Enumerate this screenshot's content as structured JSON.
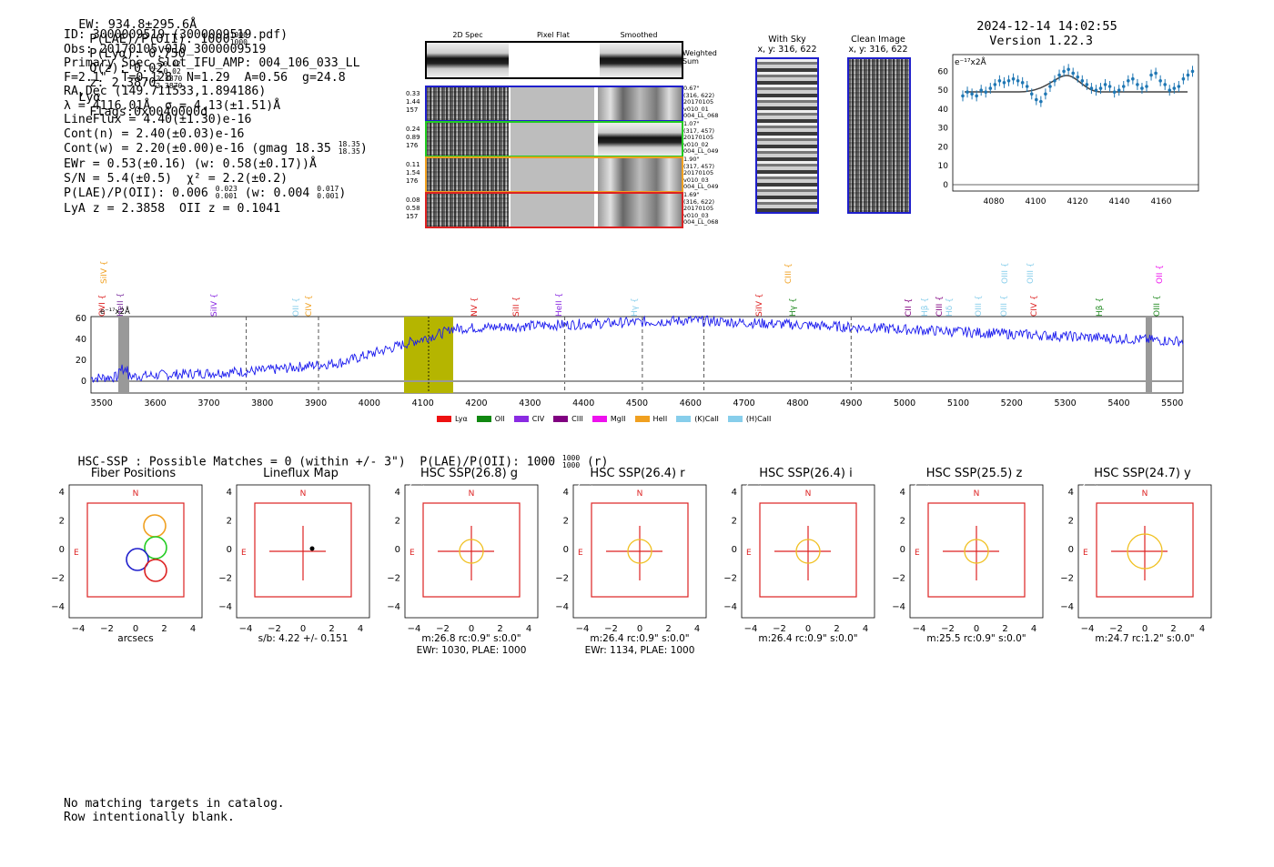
{
  "header": {
    "ew": "EW: 934.8±295.6Å",
    "plae_poii_prefix": "P(LAE)/P(OII): 1000",
    "plae_poii_hi": "1000",
    "plae_poii_lo": "1000",
    "plya": "P(Lyα): 0.750",
    "qz_prefix": "Q(z): 0.02",
    "qz_hi": "0.02",
    "qz_lo": "0.02",
    "z_prefix": "z: 2.3870",
    "z_hi": "2.3870",
    "z_lo": "2.3870",
    "z_line": "Lyα",
    "flags": "Flags:0x0040000d",
    "timestamp": "2024-12-14 14:02:55",
    "version": "Version 1.22.3"
  },
  "info": {
    "id": "ID: 3000009519 (3000009519.pdf)",
    "obs": "Obs: 20170105v010_3000009519",
    "primary": "Primary Spec_Slot_IFU_AMP: 004_106_033_LL",
    "fit": "F=2.1\"  T=0.128  N=1.29  A=0.56  g=24.8",
    "radec": "RA,Dec (149.711533,1.894186)",
    "lambda": "λ = 4116.01Å  σ = 4.13(±1.51)Å",
    "lineflux": "LineFlux = 4.40(±1.30)e-16",
    "contn": "Cont(n) = 2.40(±0.03)e-16",
    "contw_prefix": "Cont(w) = 2.20(±0.00)e-16 (gmag 18.35",
    "contw_hi": "18.35",
    "contw_lo": "18.35",
    "contw_suffix": ")",
    "ewr": "EWr = 0.53(±0.16) (w: 0.58(±0.17))Å",
    "sn": "S/N = 5.4(±0.5)  χ² = 2.2(±0.2)",
    "plae_a": "P(LAE)/P(OII): 0.006",
    "plae_a_hi": "0.023",
    "plae_a_lo": "0.001",
    "plae_b": "(w: 0.004",
    "plae_b_hi": "0.017",
    "plae_b_lo": "0.001",
    "plae_end": ")",
    "lyaz": "LyA z = 2.3858  OII z = 0.1041"
  },
  "cutouts": {
    "col_2d": "2D Spec",
    "col_flat": "Pixel Flat",
    "col_smooth": "Smoothed",
    "weighted": "Weighted Sum",
    "rows": [
      {
        "color": "#1f1fcc",
        "left": [
          "0.33",
          "1.44",
          "157"
        ],
        "right": [
          "0.67\"",
          "(316, 622)",
          "20170105",
          "v010_01",
          "004_LL_068"
        ]
      },
      {
        "color": "#22cc22",
        "left": [
          "0.24",
          "0.89",
          "176"
        ],
        "right": [
          "1.07\"",
          "(317, 457)",
          "20170105",
          "v010_02",
          "004_LL_049"
        ]
      },
      {
        "color": "#f0a020",
        "left": [
          "0.11",
          "1.54",
          "176"
        ],
        "right": [
          "1.90\"",
          "(317, 457)",
          "20170105",
          "v010_03",
          "004_LL_049"
        ]
      },
      {
        "color": "#dd2222",
        "left": [
          "0.08",
          "0.58",
          "157"
        ],
        "right": [
          "1.69\"",
          "(316, 622)",
          "20170105",
          "v010_03",
          "004_LL_068"
        ]
      }
    ]
  },
  "sky": {
    "with_sky": "With Sky",
    "with_sky_xy": "x, y: 316, 622",
    "clean": "Clean Image",
    "clean_xy": "x, y: 316, 622"
  },
  "zoom_plot": {
    "unit": "e⁻¹⁷x2Å",
    "yticks": [
      "60",
      "50",
      "40",
      "30",
      "20",
      "10",
      "0"
    ],
    "xticks": [
      "4080",
      "4100",
      "4120",
      "4140",
      "4160"
    ]
  },
  "spectrum": {
    "unit": "e⁻¹⁷x2Å",
    "yticks": [
      "60",
      "40",
      "20",
      "0"
    ],
    "xticks": [
      "3500",
      "3600",
      "3700",
      "3800",
      "3900",
      "4000",
      "4100",
      "4200",
      "4300",
      "4400",
      "4500",
      "4600",
      "4700",
      "4800",
      "4900",
      "5000",
      "5100",
      "5200",
      "5300",
      "5400",
      "5500"
    ],
    "upper_labels": [
      {
        "text": "SiIV {",
        "color": "#f0a020"
      },
      {
        "text": "CIII {",
        "color": "#f0a020"
      },
      {
        "text": "OIII {",
        "color": "#87ceeb"
      },
      {
        "text": "OIII {",
        "color": "#87ceeb"
      },
      {
        "text": "OII {",
        "color": "#ee11ee"
      }
    ],
    "lower_labels": [
      {
        "text": "OVI {",
        "color": "#dd2222"
      },
      {
        "text": "HeII {",
        "color": "#7b2fa0"
      },
      {
        "text": "SiIV {",
        "color": "#8a2be2"
      },
      {
        "text": "OII {",
        "color": "#87ceeb"
      },
      {
        "text": "CIV {",
        "color": "#f0a020"
      },
      {
        "text": "NV {",
        "color": "#dd2222"
      },
      {
        "text": "SiII {",
        "color": "#dd2222"
      },
      {
        "text": "HeII {",
        "color": "#8a2be2"
      },
      {
        "text": "Hγ {",
        "color": "#87ceeb"
      },
      {
        "text": "SiIV {",
        "color": "#dd2222"
      },
      {
        "text": "Hγ {",
        "color": "#228b22"
      },
      {
        "text": "CII {",
        "color": "#800080"
      },
      {
        "text": "Hβ {",
        "color": "#87ceeb"
      },
      {
        "text": "CIII {",
        "color": "#800080"
      },
      {
        "text": "Hδ {",
        "color": "#87ceeb"
      },
      {
        "text": "OIII {",
        "color": "#87ceeb"
      },
      {
        "text": "OIII {",
        "color": "#87ceeb"
      },
      {
        "text": "CIV {",
        "color": "#dd2222"
      },
      {
        "text": "Hβ {",
        "color": "#228b22"
      },
      {
        "text": "OIII {",
        "color": "#228b22"
      }
    ],
    "legend": [
      {
        "label": "Lyα",
        "color": "#ee1111"
      },
      {
        "label": "OII",
        "color": "#118811"
      },
      {
        "label": "CIV",
        "color": "#8a2be2"
      },
      {
        "label": "CIII",
        "color": "#800080"
      },
      {
        "label": "MgII",
        "color": "#ee11ee"
      },
      {
        "label": "HeII",
        "color": "#f0a020"
      },
      {
        "label": "(K)CaII",
        "color": "#87ceeb"
      },
      {
        "label": "(H)CaII",
        "color": "#87ceeb"
      }
    ]
  },
  "hsc": {
    "title_prefix": "HSC-SSP : Possible Matches = 0 (within +/- 3\")  P(LAE)/P(OII): 1000",
    "title_hi": "1000",
    "title_lo": "1000",
    "title_suffix": "(r)"
  },
  "panels": [
    {
      "title": "Fiber Positions",
      "cap1": "arcsecs",
      "cap2": ""
    },
    {
      "title": "Lineflux Map",
      "cap1": "s/b: 4.22 +/- 0.151",
      "cap2": ""
    },
    {
      "title": "HSC SSP(26.8) g",
      "cap1": "m:26.8 rc:0.9\"  s:0.0\"",
      "cap2": "EWr: 1030, PLAE: 1000"
    },
    {
      "title": "HSC SSP(26.4) r",
      "cap1": "m:26.4 rc:0.9\"  s:0.0\"",
      "cap2": "EWr: 1134, PLAE: 1000"
    },
    {
      "title": "HSC SSP(26.4) i",
      "cap1": "m:26.4 rc:0.9\"  s:0.0\"",
      "cap2": ""
    },
    {
      "title": "HSC SSP(25.5) z",
      "cap1": "m:25.5 rc:0.9\"  s:0.0\"",
      "cap2": ""
    },
    {
      "title": "HSC SSP(24.7) y",
      "cap1": "m:24.7 rc:1.2\"  s:0.0\"",
      "cap2": ""
    }
  ],
  "panel_axis": {
    "yticks": [
      "4",
      "2",
      "0",
      "−2",
      "−4"
    ],
    "xticks": [
      "−4",
      "−2",
      "0",
      "2",
      "4"
    ],
    "north": "N",
    "east": "E"
  },
  "footer": {
    "line1": "No matching targets in catalog.",
    "line2": "Row intentionally blank."
  }
}
